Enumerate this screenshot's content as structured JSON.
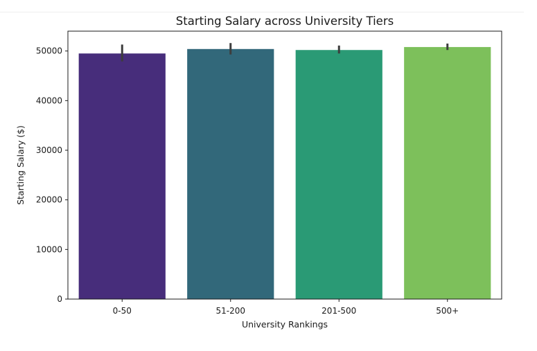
{
  "chart_data": {
    "type": "bar",
    "title": "Starting Salary across University Tiers",
    "xlabel": "University Rankings",
    "ylabel": "Starting Salary ($)",
    "categories": [
      "0-50",
      "51-200",
      "201-500",
      "500+"
    ],
    "values": [
      49500,
      50400,
      50200,
      50800
    ],
    "error_low": [
      47900,
      49300,
      49500,
      50200
    ],
    "error_high": [
      51300,
      51600,
      51100,
      51500
    ],
    "ylim": [
      0,
      54000
    ],
    "yticks": [
      0,
      10000,
      20000,
      30000,
      40000,
      50000
    ],
    "colors": [
      "#472d7b",
      "#32687a",
      "#2a9a75",
      "#7dc05b"
    ],
    "errorbar_color": "#3d3d3d",
    "grid": false,
    "legend": "none"
  }
}
